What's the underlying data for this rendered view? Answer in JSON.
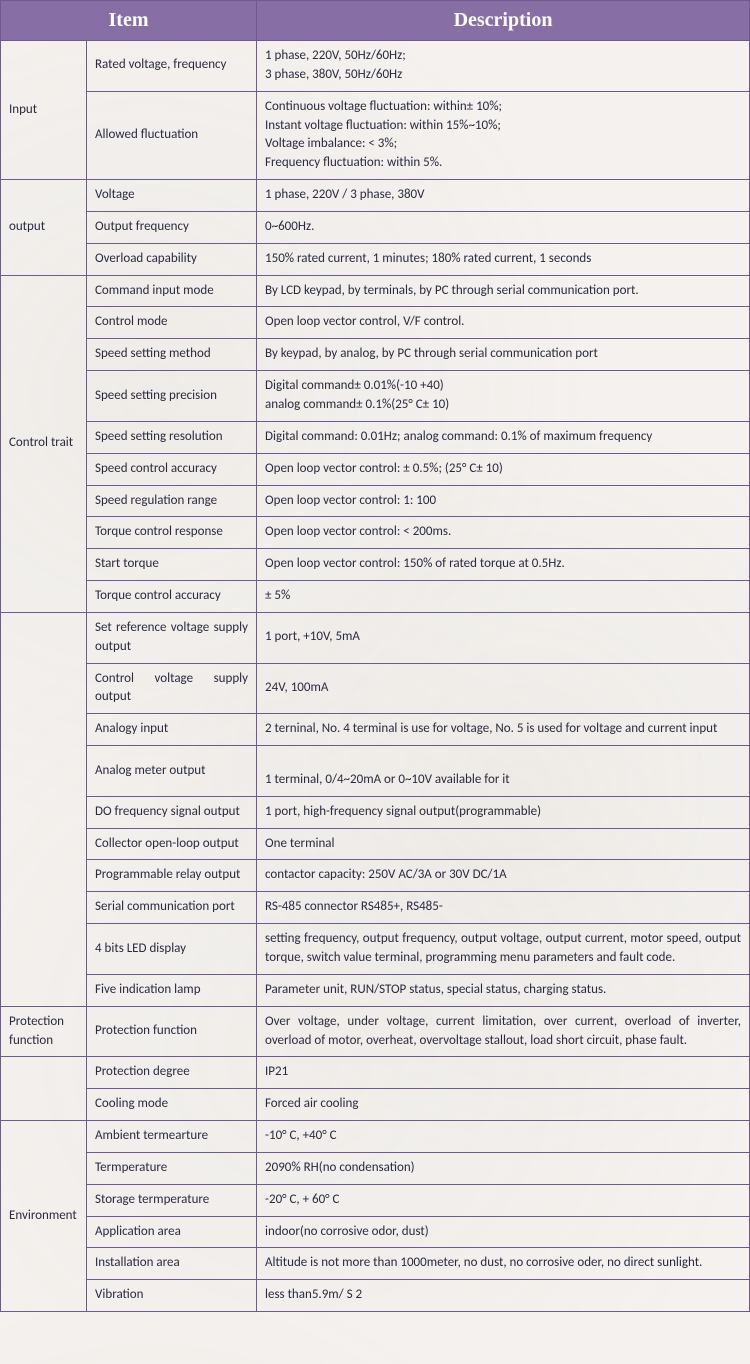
{
  "header": {
    "item": "Item",
    "description": "Description"
  },
  "colors": {
    "header_bg": "#876fa6",
    "header_text": "#ffffff",
    "border": "#6e5a8c",
    "body_bg": "#f4f1ee",
    "body_text": "#2a2a40"
  },
  "typography": {
    "header_font": "Times New Roman",
    "header_size_pt": 15,
    "body_font": "Calibri",
    "body_size_pt": 10
  },
  "groups": [
    {
      "name": "Input",
      "rows": [
        {
          "item": "Rated voltage, frequency",
          "desc": "1 phase, 220V, 50Hz/60Hz;\n3 phase, 380V, 50Hz/60Hz"
        },
        {
          "item": "Allowed fluctuation",
          "desc": "Continuous voltage fluctuation: within± 10%;\nInstant voltage fluctuation: within 15%~10%;\nVoltage imbalance: < 3%;\nFrequency fluctuation: within 5%."
        }
      ]
    },
    {
      "name": "output",
      "rows": [
        {
          "item": "Voltage",
          "desc": "1 phase, 220V    /    3 phase, 380V"
        },
        {
          "item": "Output frequency",
          "desc": "0~600Hz."
        },
        {
          "item": "Overload capability",
          "desc": "150% rated current, 1 minutes; 180% rated current, 1 seconds"
        }
      ]
    },
    {
      "name": "Control trait",
      "rows": [
        {
          "item": "Command input mode",
          "desc": "By LCD keypad, by terminals, by PC through serial communication port."
        },
        {
          "item": "Control mode",
          "desc": "Open loop vector control, V/F control."
        },
        {
          "item": "Speed setting method",
          "desc": "By keypad, by analog, by PC through serial communication port"
        },
        {
          "item": "Speed setting precision",
          "desc": "Digital command± 0.01%(-10 +40)\nanalog command± 0.1%(25° C± 10)"
        },
        {
          "item": "Speed setting resolution",
          "desc": "Digital command: 0.01Hz; analog command: 0.1% of maximum frequency"
        },
        {
          "item": "Speed control accuracy",
          "desc": "Open loop vector control: ± 0.5%; (25° C± 10)"
        },
        {
          "item": "Speed regulation range",
          "desc": "Open loop vector control: 1: 100"
        },
        {
          "item": "Torque control response",
          "desc": "Open loop vector control: < 200ms."
        },
        {
          "item": "Start torque",
          "desc": "Open loop vector control: 150% of rated torque at 0.5Hz."
        },
        {
          "item": "Torque control accuracy",
          "desc": "± 5%"
        }
      ]
    },
    {
      "name": "",
      "rows": [
        {
          "item": "Set reference voltage supply output",
          "item_justify": true,
          "desc": "1 port, +10V, 5mA"
        },
        {
          "item": "Control voltage supply output",
          "item_justify": true,
          "desc": "24V, 100mA"
        },
        {
          "item": "Analogy input",
          "desc": "2 terninal, No. 4 terminal is use for voltage, No. 5 is used for voltage and current input"
        },
        {
          "item": "Analog meter output",
          "desc": "\n1 terminal, 0/4~20mA or 0~10V available for it"
        },
        {
          "item": "DO frequency signal output",
          "item_justify": true,
          "desc": "1 port, high-frequency signal output(programmable)"
        },
        {
          "item": "Collector open-loop output",
          "item_justify": true,
          "desc": "One terminal"
        },
        {
          "item": "Programmable relay output",
          "item_justify": true,
          "desc": "contactor capacity: 250V AC/3A or 30V DC/1A"
        },
        {
          "item": "Serial communication port",
          "desc": "RS-485 connector RS485+, RS485-"
        },
        {
          "item": "4 bits LED display",
          "desc": "setting frequency, output frequency, output voltage, output current, motor speed, output torque, switch value terminal, programming menu parameters and fault code.",
          "desc_justify": true
        },
        {
          "item": "Five indication lamp",
          "desc": "Parameter unit, RUN/STOP status, special status, charging status."
        }
      ]
    },
    {
      "name": "Protection function",
      "rows": [
        {
          "item": "Protection function",
          "desc": "Over voltage, under voltage, current limitation, over current, overload of inverter, overload of motor, overheat, overvoltage stallout, load short circuit, phase fault.",
          "desc_justify": true
        }
      ]
    },
    {
      "name": "",
      "rows": [
        {
          "item": "Protection degree",
          "desc": "IP21"
        },
        {
          "item": "Cooling mode",
          "desc": "Forced air cooling"
        }
      ]
    },
    {
      "name": "Environment",
      "rows": [
        {
          "item": "Ambient termearture",
          "desc": "-10° C, +40° C"
        },
        {
          "item": "Termperature",
          "desc": "2090% RH(no condensation)"
        },
        {
          "item": "Storage termperature",
          "desc": "-20° C, + 60° C"
        },
        {
          "item": "Application area",
          "desc": "indoor(no corrosive odor, dust)"
        },
        {
          "item": "Installation area",
          "desc": "Altitude is not more than 1000meter, no dust, no corrosive oder, no direct sunlight.",
          "desc_justify": true
        },
        {
          "item": "Vibration",
          "desc": "less than5.9m/ S 2"
        }
      ]
    }
  ]
}
